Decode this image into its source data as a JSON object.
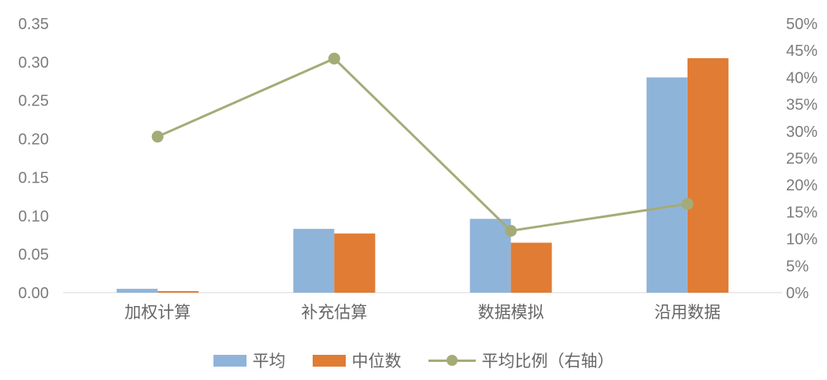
{
  "chart_data": {
    "type": "bar",
    "subtype": "combo-bar-line",
    "title": "",
    "categories": [
      "加权计算",
      "补充估算",
      "数据模拟",
      "沿用数据"
    ],
    "bar_series": [
      {
        "name": "平均",
        "color": "#8fb4d9",
        "values": [
          0.005,
          0.083,
          0.096,
          0.28
        ]
      },
      {
        "name": "中位数",
        "color": "#e07c33",
        "values": [
          0.002,
          0.077,
          0.065,
          0.305
        ]
      }
    ],
    "line_series": {
      "name": "平均比例（右轴）",
      "color": "#a5ab77",
      "axis": "right",
      "values": [
        0.29,
        0.435,
        0.115,
        0.165
      ]
    },
    "left_axis": {
      "min": 0,
      "max": 0.35,
      "step": 0.05,
      "tick_labels": [
        "0.00",
        "0.05",
        "0.10",
        "0.15",
        "0.20",
        "0.25",
        "0.30",
        "0.35"
      ]
    },
    "right_axis": {
      "min": 0,
      "max": 0.5,
      "step": 0.05,
      "tick_labels": [
        "0%",
        "5%",
        "10%",
        "15%",
        "20%",
        "25%",
        "30%",
        "35%",
        "40%",
        "45%",
        "50%"
      ]
    },
    "grid": false,
    "legend_position": "bottom",
    "axis_line_color": "#d9d9d9"
  }
}
